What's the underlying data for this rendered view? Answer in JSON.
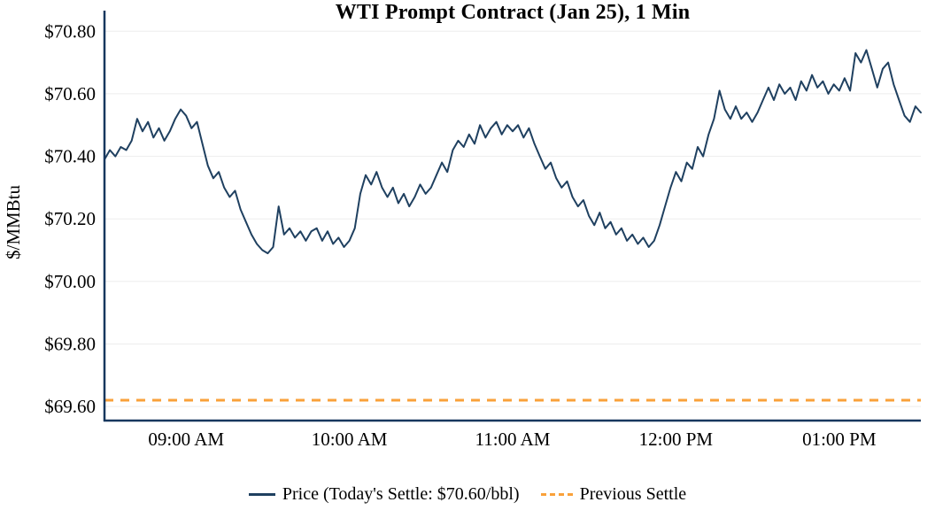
{
  "title": "WTI Prompt Contract (Jan 25), 1 Min",
  "y_axis_label": "$/MMBtu",
  "legend": {
    "price_label": "Price (Today's Settle: $70.60/bbl)",
    "prev_settle_label": "Previous Settle"
  },
  "colors": {
    "price_line": "#1f4060",
    "prev_settle_line": "#f9a13a",
    "axis": "#17375e",
    "gridline": "#ededed"
  },
  "chart_data": {
    "type": "line",
    "title": "WTI Prompt Contract (Jan 25), 1 Min",
    "xlabel": "",
    "ylabel": "$/MMBtu",
    "legend_position": "bottom",
    "grid": "faint-horizontal",
    "y_ticks": [
      "$70.80",
      "$70.60",
      "$70.40",
      "$70.20",
      "$70.00",
      "$69.80",
      "$69.60"
    ],
    "y_tick_values": [
      70.8,
      70.6,
      70.4,
      70.2,
      70.0,
      69.8,
      69.6
    ],
    "x_ticks": [
      "09:00 AM",
      "10:00 AM",
      "11:00 AM",
      "12:00 PM",
      "01:00 PM"
    ],
    "x_tick_minutes": [
      30,
      90,
      150,
      210,
      270
    ],
    "x_domain_minutes": [
      0,
      300
    ],
    "x_start_time": "08:30 AM",
    "x_end_time": "01:30 PM",
    "ylim": [
      69.555,
      70.815
    ],
    "todays_settle": 70.6,
    "previous_settle": 69.62,
    "series": [
      {
        "name": "Price",
        "units": "$/bbl",
        "points": [
          [
            0,
            70.39
          ],
          [
            2,
            70.42
          ],
          [
            4,
            70.4
          ],
          [
            6,
            70.43
          ],
          [
            8,
            70.42
          ],
          [
            10,
            70.45
          ],
          [
            12,
            70.52
          ],
          [
            14,
            70.48
          ],
          [
            16,
            70.51
          ],
          [
            18,
            70.46
          ],
          [
            20,
            70.49
          ],
          [
            22,
            70.45
          ],
          [
            24,
            70.48
          ],
          [
            26,
            70.52
          ],
          [
            28,
            70.55
          ],
          [
            30,
            70.53
          ],
          [
            32,
            70.49
          ],
          [
            34,
            70.51
          ],
          [
            36,
            70.44
          ],
          [
            38,
            70.37
          ],
          [
            40,
            70.33
          ],
          [
            42,
            70.35
          ],
          [
            44,
            70.3
          ],
          [
            46,
            70.27
          ],
          [
            48,
            70.29
          ],
          [
            50,
            70.23
          ],
          [
            52,
            70.19
          ],
          [
            54,
            70.15
          ],
          [
            56,
            70.12
          ],
          [
            58,
            70.1
          ],
          [
            60,
            70.09
          ],
          [
            62,
            70.11
          ],
          [
            64,
            70.24
          ],
          [
            66,
            70.15
          ],
          [
            68,
            70.17
          ],
          [
            70,
            70.14
          ],
          [
            72,
            70.16
          ],
          [
            74,
            70.13
          ],
          [
            76,
            70.16
          ],
          [
            78,
            70.17
          ],
          [
            80,
            70.13
          ],
          [
            82,
            70.16
          ],
          [
            84,
            70.12
          ],
          [
            86,
            70.14
          ],
          [
            88,
            70.11
          ],
          [
            90,
            70.13
          ],
          [
            92,
            70.17
          ],
          [
            94,
            70.28
          ],
          [
            96,
            70.34
          ],
          [
            98,
            70.31
          ],
          [
            100,
            70.35
          ],
          [
            102,
            70.3
          ],
          [
            104,
            70.27
          ],
          [
            106,
            70.3
          ],
          [
            108,
            70.25
          ],
          [
            110,
            70.28
          ],
          [
            112,
            70.24
          ],
          [
            114,
            70.27
          ],
          [
            116,
            70.31
          ],
          [
            118,
            70.28
          ],
          [
            120,
            70.3
          ],
          [
            122,
            70.34
          ],
          [
            124,
            70.38
          ],
          [
            126,
            70.35
          ],
          [
            128,
            70.42
          ],
          [
            130,
            70.45
          ],
          [
            132,
            70.43
          ],
          [
            134,
            70.47
          ],
          [
            136,
            70.44
          ],
          [
            138,
            70.5
          ],
          [
            140,
            70.46
          ],
          [
            142,
            70.49
          ],
          [
            144,
            70.51
          ],
          [
            146,
            70.47
          ],
          [
            148,
            70.5
          ],
          [
            150,
            70.48
          ],
          [
            152,
            70.5
          ],
          [
            154,
            70.46
          ],
          [
            156,
            70.49
          ],
          [
            158,
            70.44
          ],
          [
            160,
            70.4
          ],
          [
            162,
            70.36
          ],
          [
            164,
            70.38
          ],
          [
            166,
            70.33
          ],
          [
            168,
            70.3
          ],
          [
            170,
            70.32
          ],
          [
            172,
            70.27
          ],
          [
            174,
            70.24
          ],
          [
            176,
            70.26
          ],
          [
            178,
            70.21
          ],
          [
            180,
            70.18
          ],
          [
            182,
            70.22
          ],
          [
            184,
            70.17
          ],
          [
            186,
            70.19
          ],
          [
            188,
            70.15
          ],
          [
            190,
            70.17
          ],
          [
            192,
            70.13
          ],
          [
            194,
            70.15
          ],
          [
            196,
            70.12
          ],
          [
            198,
            70.14
          ],
          [
            200,
            70.11
          ],
          [
            202,
            70.13
          ],
          [
            204,
            70.18
          ],
          [
            206,
            70.24
          ],
          [
            208,
            70.3
          ],
          [
            210,
            70.35
          ],
          [
            212,
            70.32
          ],
          [
            214,
            70.38
          ],
          [
            216,
            70.36
          ],
          [
            218,
            70.43
          ],
          [
            220,
            70.4
          ],
          [
            222,
            70.47
          ],
          [
            224,
            70.52
          ],
          [
            226,
            70.61
          ],
          [
            228,
            70.55
          ],
          [
            230,
            70.52
          ],
          [
            232,
            70.56
          ],
          [
            234,
            70.52
          ],
          [
            236,
            70.54
          ],
          [
            238,
            70.51
          ],
          [
            240,
            70.54
          ],
          [
            242,
            70.58
          ],
          [
            244,
            70.62
          ],
          [
            246,
            70.58
          ],
          [
            248,
            70.63
          ],
          [
            250,
            70.6
          ],
          [
            252,
            70.62
          ],
          [
            254,
            70.58
          ],
          [
            256,
            70.64
          ],
          [
            258,
            70.61
          ],
          [
            260,
            70.66
          ],
          [
            262,
            70.62
          ],
          [
            264,
            70.64
          ],
          [
            266,
            70.6
          ],
          [
            268,
            70.63
          ],
          [
            270,
            70.61
          ],
          [
            272,
            70.65
          ],
          [
            274,
            70.61
          ],
          [
            276,
            70.73
          ],
          [
            278,
            70.7
          ],
          [
            280,
            70.74
          ],
          [
            282,
            70.68
          ],
          [
            284,
            70.62
          ],
          [
            286,
            70.68
          ],
          [
            288,
            70.7
          ],
          [
            290,
            70.63
          ],
          [
            292,
            70.58
          ],
          [
            294,
            70.53
          ],
          [
            296,
            70.51
          ],
          [
            298,
            70.56
          ],
          [
            300,
            70.54
          ]
        ]
      }
    ]
  }
}
